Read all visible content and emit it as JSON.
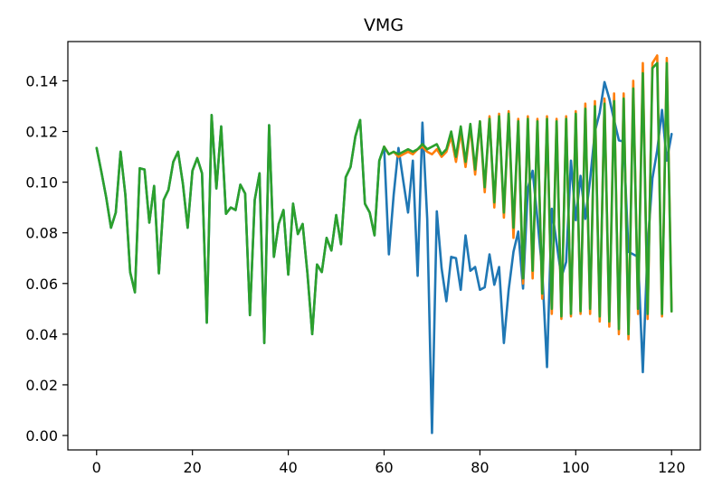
{
  "chart_data": {
    "type": "line",
    "title": "VMG",
    "xlabel": "",
    "ylabel": "",
    "xlim": [
      -6,
      126
    ],
    "ylim": [
      -0.0057,
      0.1555
    ],
    "xticks": [
      0,
      20,
      40,
      60,
      80,
      100,
      120
    ],
    "yticks": [
      0.0,
      0.02,
      0.04,
      0.06,
      0.08,
      0.1,
      0.12,
      0.14
    ],
    "grid": false,
    "legend": "none",
    "series": [
      {
        "color": "#1f77b4",
        "x": [
          0,
          1,
          2,
          3,
          4,
          5,
          6,
          7,
          8,
          9,
          10,
          11,
          12,
          13,
          14,
          15,
          16,
          17,
          18,
          19,
          20,
          21,
          22,
          23,
          24,
          25,
          26,
          27,
          28,
          29,
          30,
          31,
          32,
          33,
          34,
          35,
          36,
          37,
          38,
          39,
          40,
          41,
          42,
          43,
          44,
          45,
          46,
          47,
          48,
          49,
          50,
          51,
          52,
          53,
          54,
          55,
          56,
          57,
          58,
          59,
          60,
          61,
          62,
          63,
          64,
          65,
          66,
          67,
          68,
          69,
          70,
          71,
          72,
          73,
          74,
          75,
          76,
          77,
          78,
          79,
          80,
          81,
          82,
          83,
          84,
          85,
          86,
          87,
          88,
          89,
          90,
          91,
          92,
          93,
          94,
          95,
          96,
          97,
          98,
          99,
          100,
          101,
          102,
          103,
          104,
          105,
          106,
          107,
          108,
          109,
          110,
          111,
          112,
          113,
          114,
          115,
          116,
          117,
          118,
          119,
          120
        ],
        "y": [
          0.1135,
          0.104,
          0.094,
          0.082,
          0.088,
          0.112,
          0.095,
          0.0645,
          0.0565,
          0.1055,
          0.105,
          0.084,
          0.0985,
          0.064,
          0.093,
          0.097,
          0.108,
          0.112,
          0.0995,
          0.082,
          0.1045,
          0.1095,
          0.1035,
          0.0445,
          0.1265,
          0.0975,
          0.122,
          0.0875,
          0.09,
          0.089,
          0.099,
          0.0955,
          0.0475,
          0.093,
          0.1035,
          0.0365,
          0.1225,
          0.0705,
          0.0835,
          0.089,
          0.0635,
          0.0915,
          0.0795,
          0.0835,
          0.064,
          0.04,
          0.0675,
          0.0645,
          0.078,
          0.073,
          0.087,
          0.0755,
          0.102,
          0.106,
          0.118,
          0.1245,
          0.0915,
          0.088,
          0.079,
          0.1085,
          0.114,
          0.0715,
          0.095,
          0.1135,
          0.1005,
          0.088,
          0.1085,
          0.063,
          0.1235,
          0.0855,
          0.001,
          0.0885,
          0.066,
          0.053,
          0.0705,
          0.07,
          0.0575,
          0.079,
          0.065,
          0.0665,
          0.0575,
          0.0585,
          0.0715,
          0.0595,
          0.0665,
          0.0365,
          0.0575,
          0.0725,
          0.0805,
          0.058,
          0.0975,
          0.1045,
          0.0855,
          0.065,
          0.027,
          0.0895,
          0.076,
          0.0625,
          0.0685,
          0.1085,
          0.085,
          0.1025,
          0.0855,
          0.101,
          0.12,
          0.1275,
          0.1395,
          0.133,
          0.1245,
          0.1165,
          0.116,
          0.0725,
          0.0715,
          0.0705,
          0.025,
          0.0745,
          0.1015,
          0.1125,
          0.1285,
          0.1085,
          0.119
        ]
      },
      {
        "color": "#ff7f0e",
        "x": [
          60,
          61,
          62,
          63,
          64,
          65,
          66,
          67,
          68,
          69,
          70,
          71,
          72,
          73,
          74,
          75,
          76,
          77,
          78,
          79,
          80,
          81,
          82,
          83,
          84,
          85,
          86,
          87,
          88,
          89,
          90,
          91,
          92,
          93,
          94,
          95,
          96,
          97,
          98,
          99,
          100,
          101,
          102,
          103,
          104,
          105,
          106,
          107,
          108,
          109,
          110,
          111,
          112,
          113,
          114,
          115,
          116,
          117,
          118,
          119,
          120
        ],
        "y": [
          0.114,
          0.111,
          0.112,
          0.11,
          0.111,
          0.112,
          0.111,
          0.113,
          0.114,
          0.112,
          0.111,
          0.113,
          0.11,
          0.112,
          0.118,
          0.108,
          0.12,
          0.106,
          0.122,
          0.103,
          0.124,
          0.096,
          0.126,
          0.09,
          0.127,
          0.086,
          0.128,
          0.078,
          0.125,
          0.06,
          0.126,
          0.062,
          0.125,
          0.054,
          0.126,
          0.048,
          0.125,
          0.046,
          0.126,
          0.047,
          0.128,
          0.048,
          0.131,
          0.048,
          0.132,
          0.045,
          0.133,
          0.043,
          0.135,
          0.04,
          0.135,
          0.038,
          0.14,
          0.048,
          0.147,
          0.046,
          0.147,
          0.15,
          0.047,
          0.149,
          0.049
        ]
      },
      {
        "color": "#2ca02c",
        "x": [
          0,
          1,
          2,
          3,
          4,
          5,
          6,
          7,
          8,
          9,
          10,
          11,
          12,
          13,
          14,
          15,
          16,
          17,
          18,
          19,
          20,
          21,
          22,
          23,
          24,
          25,
          26,
          27,
          28,
          29,
          30,
          31,
          32,
          33,
          34,
          35,
          36,
          37,
          38,
          39,
          40,
          41,
          42,
          43,
          44,
          45,
          46,
          47,
          48,
          49,
          50,
          51,
          52,
          53,
          54,
          55,
          56,
          57,
          58,
          59,
          60,
          61,
          62,
          63,
          64,
          65,
          66,
          67,
          68,
          69,
          70,
          71,
          72,
          73,
          74,
          75,
          76,
          77,
          78,
          79,
          80,
          81,
          82,
          83,
          84,
          85,
          86,
          87,
          88,
          89,
          90,
          91,
          92,
          93,
          94,
          95,
          96,
          97,
          98,
          99,
          100,
          101,
          102,
          103,
          104,
          105,
          106,
          107,
          108,
          109,
          110,
          111,
          112,
          113,
          114,
          115,
          116,
          117,
          118,
          119,
          120
        ],
        "y": [
          0.1135,
          0.104,
          0.094,
          0.082,
          0.088,
          0.112,
          0.095,
          0.0645,
          0.0565,
          0.1055,
          0.105,
          0.084,
          0.0985,
          0.064,
          0.093,
          0.097,
          0.108,
          0.112,
          0.0995,
          0.082,
          0.1045,
          0.1095,
          0.1035,
          0.0445,
          0.1265,
          0.0975,
          0.122,
          0.0875,
          0.09,
          0.089,
          0.099,
          0.0955,
          0.0475,
          0.093,
          0.1035,
          0.0365,
          0.1225,
          0.0705,
          0.0835,
          0.089,
          0.0635,
          0.0915,
          0.0795,
          0.0835,
          0.064,
          0.04,
          0.0675,
          0.0645,
          0.078,
          0.073,
          0.087,
          0.0755,
          0.102,
          0.106,
          0.118,
          0.1245,
          0.0915,
          0.088,
          0.079,
          0.1085,
          0.114,
          0.111,
          0.112,
          0.111,
          0.112,
          0.113,
          0.112,
          0.113,
          0.115,
          0.113,
          0.114,
          0.115,
          0.111,
          0.113,
          0.12,
          0.11,
          0.122,
          0.108,
          0.123,
          0.105,
          0.124,
          0.098,
          0.125,
          0.092,
          0.126,
          0.088,
          0.127,
          0.082,
          0.124,
          0.062,
          0.125,
          0.065,
          0.124,
          0.056,
          0.125,
          0.05,
          0.124,
          0.047,
          0.125,
          0.048,
          0.127,
          0.049,
          0.129,
          0.05,
          0.13,
          0.047,
          0.131,
          0.045,
          0.132,
          0.042,
          0.133,
          0.04,
          0.137,
          0.05,
          0.143,
          0.048,
          0.145,
          0.147,
          0.048,
          0.147,
          0.049
        ]
      }
    ]
  }
}
